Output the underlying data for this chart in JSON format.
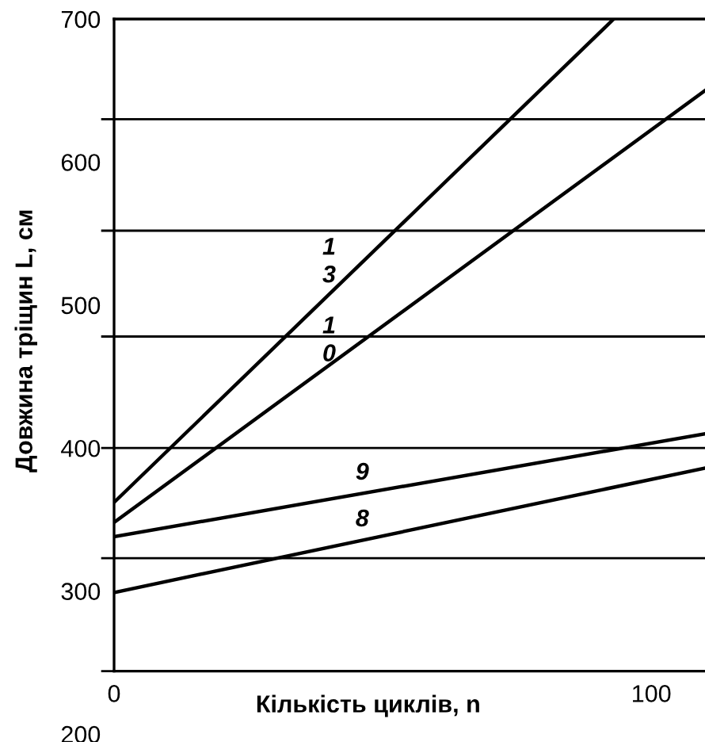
{
  "chart_data": {
    "type": "line",
    "xlabel": "Кількість циклів, n",
    "ylabel": "Довжина тріщин L, см",
    "xlim": [
      0,
      110
    ],
    "ylim": [
      200,
      700
    ],
    "xticks": [
      0,
      100
    ],
    "yticks": [
      200,
      300,
      400,
      500,
      600,
      700
    ],
    "series": [
      {
        "name": "13",
        "color": "#000000",
        "x": [
          0,
          93
        ],
        "values": [
          362,
          700
        ]
      },
      {
        "name": "10",
        "color": "#000000",
        "x": [
          0,
          110
        ],
        "values": [
          348,
          650
        ]
      },
      {
        "name": "9",
        "color": "#000000",
        "x": [
          0,
          110
        ],
        "values": [
          338,
          410
        ]
      },
      {
        "name": "8",
        "color": "#000000",
        "x": [
          0,
          110
        ],
        "values": [
          299,
          386
        ]
      }
    ],
    "ref_lines": [
      {
        "axis": "y",
        "value": 244,
        "color": "#000000"
      },
      {
        "axis": "y",
        "value": 323,
        "color": "#000000"
      },
      {
        "axis": "y",
        "value": 400,
        "color": "#000000"
      },
      {
        "axis": "y",
        "value": 478,
        "color": "#000000"
      },
      {
        "axis": "y",
        "value": 552,
        "color": "#000000"
      },
      {
        "axis": "y",
        "value": 630,
        "color": "#000000"
      }
    ],
    "grid": false,
    "legend": false,
    "marker": "none",
    "line_style": "solid"
  }
}
